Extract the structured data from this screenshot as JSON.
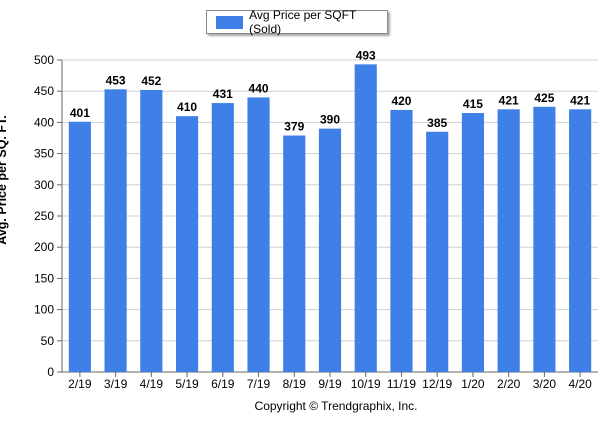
{
  "chart_data": {
    "type": "bar",
    "categories": [
      "2/19",
      "3/19",
      "4/19",
      "5/19",
      "6/19",
      "7/19",
      "8/19",
      "9/19",
      "10/19",
      "11/19",
      "12/19",
      "1/20",
      "2/20",
      "3/20",
      "4/20"
    ],
    "series": [
      {
        "name": "Avg Price per SQFT (Sold)",
        "values": [
          401,
          453,
          452,
          410,
          431,
          440,
          379,
          390,
          493,
          420,
          385,
          415,
          421,
          425,
          421
        ]
      }
    ],
    "ylabel": "Avg. Price per SQ. FT.",
    "xlabel": "Copyright © Trendgraphix, Inc.",
    "ylim": [
      0,
      500
    ],
    "yticks": [
      0,
      50,
      100,
      150,
      200,
      250,
      300,
      350,
      400,
      450,
      500
    ],
    "grid": true,
    "legend_position": "top",
    "data_labels": true,
    "colors": {
      "bar": "#3f80e8",
      "grid": "#d0d0d0",
      "axis": "#666666"
    }
  }
}
